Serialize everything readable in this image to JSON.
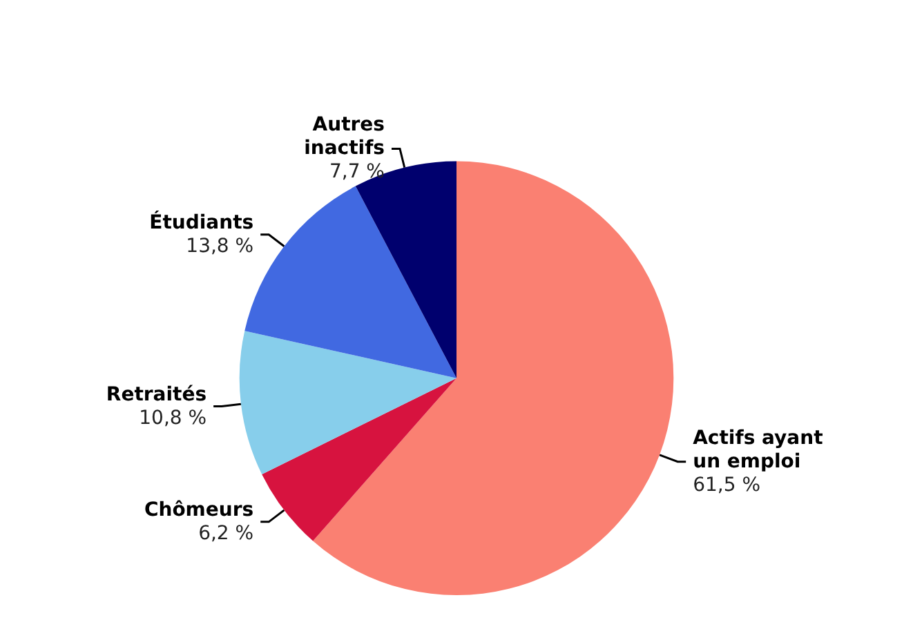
{
  "chart_data": {
    "type": "pie",
    "categories": [
      "Actifs ayant un emploi",
      "Chômeurs",
      "Retraités",
      "Étudiants",
      "Autres inactifs"
    ],
    "values": [
      61.5,
      6.2,
      10.8,
      13.8,
      7.7
    ],
    "value_labels": [
      "61,5 %",
      "6,2 %",
      "10,8 %",
      "13,8 %",
      "7,7 %"
    ],
    "colors": [
      "#fa8072",
      "#d7133f",
      "#87ceeb",
      "#4169e1",
      "#00006e"
    ],
    "legend": false
  }
}
